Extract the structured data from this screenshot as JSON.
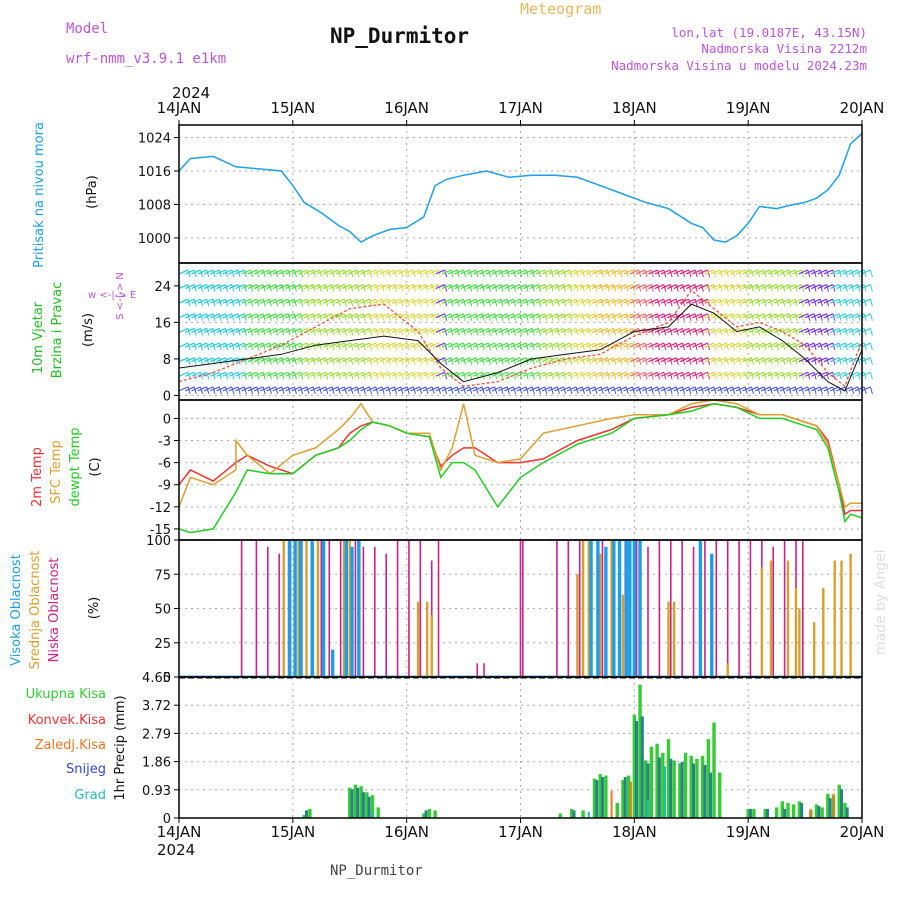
{
  "header": {
    "model_label": "Model",
    "model_name": "wrf-nmm_v3.9.1  e1km",
    "station": "NP_Durmitor",
    "meteogram": "Meteogram",
    "lonlat": "lon,lat (19.0187E, 43.15N)",
    "elev": "Nadmorska Visina 2212m",
    "elev_model": "Nadmorska Visina u modelu 2024.23m",
    "footer_station": "NP_Durmitor",
    "credit": "made by Angel",
    "year": "2024"
  },
  "colors": {
    "pressure": "#1ea0e6",
    "wind_label": "#22bb22",
    "temp2m": "#ee3333",
    "sfc": "#dda030",
    "dewpt": "#22cc22",
    "high_cloud": "#1e9ee8",
    "mid_cloud": "#d8a030",
    "low_cloud": "#cc2288",
    "total_precip": "#33cc33",
    "conv_precip": "#ee3333",
    "frz_precip": "#ee7722",
    "snow": "#3344dd",
    "graupel": "#22bbbb",
    "accent": "#bb55dd"
  },
  "chart_data": [
    {
      "type": "line",
      "panel": "pressure",
      "ylabel": "Pritisak na nivou mora",
      "unit": "(hPa)",
      "x_ticks": [
        "14JAN",
        "15JAN",
        "16JAN",
        "17JAN",
        "18JAN",
        "19JAN",
        "20JAN"
      ],
      "ylim": [
        994,
        1027
      ],
      "yticks": [
        1000,
        1008,
        1016,
        1024
      ],
      "series": [
        {
          "x": [
            0,
            0.1,
            0.3,
            0.5,
            0.7,
            0.9,
            1.0,
            1.1,
            1.25,
            1.4,
            1.5,
            1.6,
            1.7,
            1.85,
            2.0,
            2.15,
            2.25,
            2.35,
            2.5,
            2.7,
            2.9,
            3.1,
            3.3,
            3.5,
            3.7,
            3.9,
            4.1,
            4.3,
            4.5,
            4.6,
            4.7,
            4.8,
            4.9,
            5.0,
            5.1,
            5.25,
            5.4,
            5.5,
            5.6,
            5.7,
            5.8,
            5.9,
            6.0
          ],
          "y": [
            1016,
            1019,
            1019.5,
            1017,
            1016.5,
            1016,
            1012.5,
            1008.5,
            1006,
            1003,
            1001.5,
            999,
            1000.5,
            1002,
            1002.5,
            1005,
            1012.5,
            1014,
            1015,
            1016,
            1014.5,
            1015,
            1015,
            1014.5,
            1012.5,
            1010.5,
            1008.5,
            1007,
            1003.5,
            1002.5,
            999.5,
            999,
            1000.5,
            1003.5,
            1007.5,
            1007,
            1008,
            1008.5,
            1009.5,
            1011.5,
            1015,
            1022.5,
            1025
          ]
        }
      ]
    },
    {
      "type": "line",
      "panel": "wind",
      "ylabel": "10m Vjetar Brzina i Pravac",
      "unit": "(m/s)",
      "compass": "w <-|-> E",
      "compass_v": "S <-|-> N",
      "ylim": [
        -1,
        29
      ],
      "yticks": [
        0,
        8,
        16,
        24
      ],
      "series": [
        {
          "x": [
            0,
            0.3,
            0.6,
            0.9,
            1.2,
            1.5,
            1.8,
            2.1,
            2.3,
            2.5,
            2.8,
            3.1,
            3.4,
            3.7,
            4.0,
            4.3,
            4.5,
            4.7,
            4.9,
            5.1,
            5.3,
            5.5,
            5.7,
            5.85,
            6.0
          ],
          "y": [
            6,
            7,
            8,
            9,
            11,
            12,
            13,
            12,
            7,
            3,
            5,
            8,
            9,
            10,
            14,
            15,
            20,
            18,
            14,
            15,
            12,
            8,
            3,
            1,
            10
          ]
        },
        {
          "x": [
            0,
            0.3,
            0.6,
            0.9,
            1.2,
            1.5,
            1.8,
            2.1,
            2.3,
            2.5,
            2.8,
            3.1,
            3.4,
            3.7,
            4.0,
            4.3,
            4.5,
            4.7,
            4.9,
            5.1,
            5.3,
            5.5,
            5.7,
            5.85,
            6.0
          ],
          "y": [
            3,
            5,
            8,
            11,
            15,
            19,
            20,
            14,
            6,
            2,
            3,
            6,
            8,
            9,
            13,
            16,
            23,
            19,
            15,
            16,
            14,
            11,
            5,
            2,
            12
          ]
        }
      ]
    },
    {
      "type": "line",
      "panel": "temperature",
      "labels": [
        "2m Temp",
        "SFC Temp",
        "dewpt Temp"
      ],
      "unit": "(C)",
      "ylim": [
        -16.5,
        2.5
      ],
      "yticks": [
        -15,
        -12,
        -9,
        -6,
        -3,
        0
      ],
      "series": [
        {
          "name": "2m Temp",
          "x": [
            0,
            0.1,
            0.3,
            0.5,
            0.6,
            0.8,
            1.0,
            1.2,
            1.4,
            1.5,
            1.6,
            1.7,
            1.85,
            2.0,
            2.2,
            2.3,
            2.4,
            2.5,
            2.6,
            2.8,
            3.0,
            3.2,
            3.5,
            3.8,
            4.0,
            4.3,
            4.5,
            4.7,
            4.9,
            5.1,
            5.3,
            5.5,
            5.6,
            5.7,
            5.8,
            5.85,
            5.9,
            6.0
          ],
          "y": [
            -9,
            -7,
            -8.5,
            -6,
            -5,
            -6.5,
            -7.5,
            -5,
            -4,
            -2,
            -1,
            -0.5,
            -1,
            -2,
            -2.5,
            -6.5,
            -5,
            -4,
            -4,
            -6,
            -6,
            -5.5,
            -3,
            -1.5,
            0,
            0.5,
            1.5,
            2,
            1.5,
            0.5,
            0.5,
            -0.5,
            -1,
            -3,
            -9,
            -13,
            -12.5,
            -12.5
          ]
        },
        {
          "name": "SFC Temp",
          "x": [
            0,
            0.1,
            0.3,
            0.5,
            0.5,
            0.6,
            0.8,
            1.0,
            1.2,
            1.4,
            1.5,
            1.6,
            1.7,
            1.85,
            2.0,
            2.2,
            2.3,
            2.4,
            2.5,
            2.6,
            2.8,
            3.0,
            3.2,
            3.5,
            3.8,
            4.0,
            4.3,
            4.5,
            4.7,
            4.9,
            5.1,
            5.3,
            5.5,
            5.6,
            5.7,
            5.8,
            5.85,
            5.9,
            6.0
          ],
          "y": [
            -12,
            -8,
            -9,
            -7,
            -3,
            -5,
            -7.5,
            -5,
            -4,
            -1.5,
            0,
            2,
            -0.5,
            -1,
            -2,
            -2,
            -7,
            -4,
            2,
            -5,
            -6,
            -5.5,
            -2,
            -1,
            0,
            0.5,
            0.5,
            2,
            2.5,
            2,
            0.5,
            0.5,
            -0.5,
            -1,
            -3.5,
            -9,
            -12,
            -11.5,
            -11.5
          ]
        },
        {
          "name": "dewpt Temp",
          "x": [
            0,
            0.1,
            0.3,
            0.5,
            0.6,
            0.8,
            1.0,
            1.2,
            1.4,
            1.5,
            1.6,
            1.7,
            1.85,
            2.0,
            2.2,
            2.3,
            2.4,
            2.5,
            2.6,
            2.8,
            3.0,
            3.2,
            3.5,
            3.8,
            4.0,
            4.3,
            4.5,
            4.7,
            4.9,
            5.1,
            5.3,
            5.5,
            5.6,
            5.7,
            5.8,
            5.85,
            5.9,
            6.0
          ],
          "y": [
            -15,
            -15.5,
            -15,
            -10,
            -7,
            -7.5,
            -7.5,
            -5,
            -4,
            -3,
            -1.5,
            -0.5,
            -1,
            -2,
            -2.5,
            -8,
            -6,
            -6,
            -7,
            -12,
            -8,
            -6,
            -3.5,
            -2,
            0,
            0.5,
            1,
            2,
            1.5,
            0,
            0,
            -1,
            -1.5,
            -4,
            -10,
            -14,
            -13,
            -13.5
          ]
        }
      ]
    },
    {
      "type": "bar",
      "panel": "cloud",
      "labels": [
        "Visoka Oblacnost",
        "Srednja Oblacnost",
        "Niska Oblacnost"
      ],
      "unit": "(%)",
      "ylim": [
        0,
        100
      ],
      "yticks": [
        0,
        25,
        50,
        75,
        100
      ],
      "series": [
        {
          "name": "Niska Oblacnost",
          "x": [
            0.55,
            0.68,
            0.78,
            0.88,
            0.98,
            1.08,
            1.12,
            1.18,
            1.25,
            1.32,
            1.42,
            1.55,
            1.62,
            1.72,
            1.82,
            1.92,
            2.02,
            2.12,
            2.22,
            2.28,
            2.62,
            2.68,
            3.0,
            3.02,
            3.32,
            3.42,
            3.52,
            3.62,
            3.72,
            3.82,
            3.92,
            4.02,
            4.12,
            4.22,
            4.32,
            4.42,
            4.52,
            4.62,
            4.72,
            4.82,
            4.92,
            5.02,
            5.12,
            5.22,
            5.32,
            5.42,
            5.48
          ],
          "values": [
            100,
            100,
            95,
            90,
            100,
            100,
            100,
            95,
            100,
            100,
            100,
            100,
            95,
            95,
            90,
            100,
            100,
            100,
            85,
            100,
            10,
            10,
            100,
            100,
            100,
            100,
            100,
            100,
            100,
            100,
            100,
            100,
            95,
            100,
            100,
            100,
            95,
            100,
            100,
            100,
            100,
            100,
            100,
            95,
            100,
            100,
            100
          ]
        },
        {
          "name": "Srednja Oblacnost",
          "x": [
            0.92,
            1.05,
            1.12,
            1.22,
            1.45,
            1.5,
            1.58,
            2.1,
            2.18,
            2.22,
            3.5,
            3.55,
            3.6,
            3.7,
            3.8,
            3.9,
            4.3,
            4.35,
            4.82,
            5.12,
            5.2,
            5.35,
            5.42,
            5.45,
            5.58,
            5.66,
            5.76,
            5.82,
            5.9
          ],
          "values": [
            100,
            100,
            100,
            100,
            100,
            100,
            100,
            55,
            55,
            45,
            75,
            100,
            100,
            90,
            100,
            60,
            55,
            55,
            10,
            80,
            85,
            85,
            65,
            50,
            40,
            65,
            85,
            85,
            90
          ]
        },
        {
          "name": "Visoka Oblacnost",
          "x": [
            0.97,
            1.02,
            1.07,
            1.17,
            1.27,
            1.35,
            1.47,
            1.52,
            1.58,
            3.62,
            3.68,
            3.75,
            3.82,
            3.87,
            3.93,
            3.96,
            4.0,
            4.05,
            4.58,
            4.68
          ],
          "values": [
            100,
            100,
            100,
            100,
            100,
            20,
            100,
            95,
            100,
            100,
            100,
            95,
            100,
            100,
            100,
            100,
            100,
            100,
            100,
            90
          ]
        }
      ]
    },
    {
      "type": "bar",
      "panel": "precip",
      "labels": [
        "Ukupna Kisa",
        "Konvek.Kisa",
        "Zaledj.Kisa",
        "Snijeg",
        "Grad"
      ],
      "unit": "1hr Precip (mm)",
      "ylim": [
        0,
        4.65
      ],
      "yticks": [
        0,
        0.93,
        1.86,
        2.79,
        3.72,
        4.65
      ],
      "x_ticks": [
        "14JAN",
        "15JAN",
        "16JAN",
        "17JAN",
        "18JAN",
        "19JAN",
        "20JAN"
      ],
      "series": [
        {
          "name": "Ukupna Kisa",
          "x": [
            1.1,
            1.15,
            1.5,
            1.55,
            1.6,
            1.65,
            1.7,
            1.75,
            2.15,
            2.2,
            2.25,
            3.35,
            3.45,
            3.55,
            3.65,
            3.7,
            3.75,
            3.85,
            3.9,
            3.95,
            4.0,
            4.05,
            4.1,
            4.15,
            4.2,
            4.25,
            4.3,
            4.35,
            4.4,
            4.45,
            4.5,
            4.55,
            4.6,
            4.65,
            4.7,
            4.75,
            5.0,
            5.05,
            5.15,
            5.25,
            5.3,
            5.35,
            5.4,
            5.45,
            5.55,
            5.6,
            5.65,
            5.7,
            5.75,
            5.8,
            5.85
          ],
          "values": [
            0.1,
            0.3,
            1.0,
            1.1,
            1.05,
            0.85,
            0.75,
            0.35,
            0.15,
            0.3,
            0.25,
            0.15,
            0.3,
            0.25,
            1.3,
            1.45,
            1.4,
            0.5,
            1.25,
            1.4,
            3.4,
            4.4,
            1.9,
            2.35,
            2.45,
            2.15,
            2.6,
            1.9,
            1.8,
            2.15,
            2.05,
            1.95,
            2.05,
            2.6,
            3.15,
            1.5,
            0.3,
            0.3,
            0.3,
            0.35,
            0.55,
            0.5,
            0.45,
            0.55,
            0.25,
            0.45,
            0.35,
            0.8,
            0.75,
            1.1,
            0.5
          ]
        },
        {
          "name": "Snijeg",
          "x": [
            1.12,
            1.52,
            1.57,
            1.62,
            1.67,
            2.17,
            3.47,
            3.67,
            3.72,
            3.92,
            4.02,
            4.07,
            4.12,
            4.22,
            4.32,
            4.42,
            4.52,
            4.62,
            4.67,
            5.02,
            5.17,
            5.32,
            5.47,
            5.62,
            5.72,
            5.82,
            5.87
          ],
          "values": [
            0.25,
            0.95,
            1.0,
            0.85,
            0.7,
            0.25,
            0.25,
            1.25,
            1.35,
            1.35,
            3.2,
            3.35,
            1.8,
            2.0,
            1.95,
            1.85,
            1.8,
            1.75,
            1.5,
            0.3,
            0.3,
            0.3,
            0.5,
            0.4,
            0.65,
            0.95,
            0.35
          ]
        },
        {
          "name": "Zaledj.Kisa",
          "x": [
            3.8,
            3.97,
            5.55,
            5.75
          ],
          "values": [
            0.9,
            1.2,
            0.3,
            0.8
          ]
        },
        {
          "name": "Grad",
          "x": [
            1.7,
            3.6,
            4.12,
            4.27
          ],
          "values": [
            0.2,
            0.2,
            0.6,
            1.7
          ]
        }
      ]
    }
  ]
}
